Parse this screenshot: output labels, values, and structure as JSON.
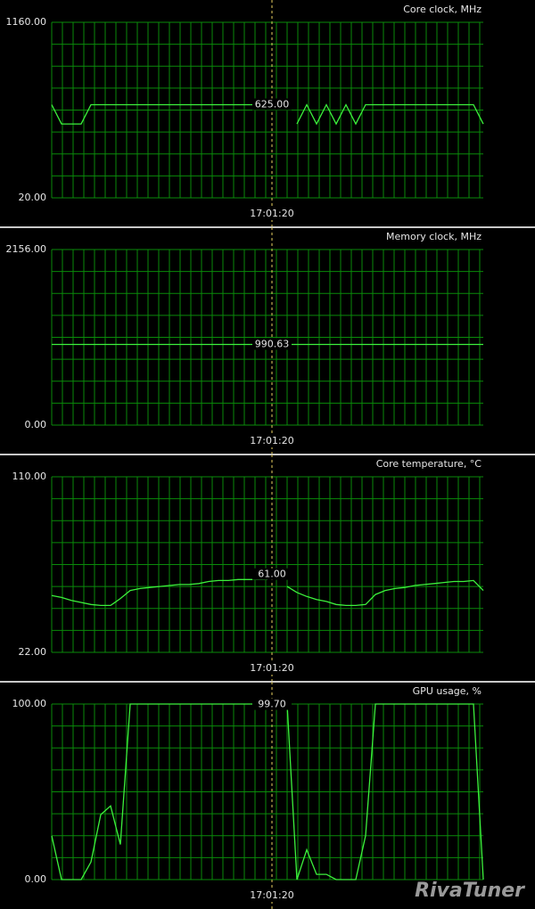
{
  "chart_data": [
    {
      "type": "line",
      "title": "Core clock, MHz",
      "categories": [
        null,
        null,
        null,
        null,
        null,
        null,
        null,
        null,
        null,
        null,
        null,
        null,
        null,
        null,
        null,
        null,
        null,
        null,
        null,
        null,
        null,
        null,
        null,
        null,
        null,
        null,
        null,
        null,
        null,
        null,
        null,
        null,
        null,
        null,
        null,
        null,
        null,
        null,
        null,
        null,
        null,
        null,
        null,
        null,
        null
      ],
      "values": [
        625,
        500,
        500,
        500,
        625,
        625,
        625,
        625,
        625,
        625,
        625,
        625,
        625,
        625,
        625,
        625,
        625,
        625,
        625,
        625,
        625,
        625,
        625,
        null,
        null,
        500,
        625,
        500,
        625,
        500,
        625,
        500,
        625,
        625,
        625,
        625,
        625,
        625,
        625,
        625,
        625,
        625,
        625,
        625,
        500
      ],
      "color": "#3cf03c",
      "ylim": [
        20,
        1160
      ],
      "yticks": [
        {
          "value": 20,
          "label": "20.00"
        },
        {
          "value": 1160,
          "label": "1160.00"
        }
      ],
      "grid": true,
      "cursor": {
        "time": "17:01:20",
        "value": 625,
        "label": "625.00"
      }
    },
    {
      "type": "line",
      "title": "Memory clock, MHz",
      "categories": [
        null,
        null,
        null,
        null,
        null,
        null,
        null,
        null,
        null,
        null,
        null,
        null,
        null,
        null,
        null,
        null,
        null,
        null,
        null,
        null,
        null,
        null,
        null,
        null,
        null,
        null,
        null,
        null,
        null,
        null,
        null,
        null,
        null,
        null,
        null,
        null,
        null,
        null,
        null,
        null,
        null,
        null,
        null,
        null,
        null
      ],
      "values": [
        990.63,
        990.63,
        990.63,
        990.63,
        990.63,
        990.63,
        990.63,
        990.63,
        990.63,
        990.63,
        990.63,
        990.63,
        990.63,
        990.63,
        990.63,
        990.63,
        990.63,
        990.63,
        990.63,
        990.63,
        990.63,
        990.63,
        990.63,
        990.63,
        990.63,
        990.63,
        990.63,
        990.63,
        990.63,
        990.63,
        990.63,
        990.63,
        990.63,
        990.63,
        990.63,
        990.63,
        990.63,
        990.63,
        990.63,
        990.63,
        990.63,
        990.63,
        990.63,
        990.63,
        990.63
      ],
      "color": "#3cf03c",
      "ylim": [
        0,
        2156
      ],
      "yticks": [
        {
          "value": 0,
          "label": "0.00"
        },
        {
          "value": 2156,
          "label": "2156.00"
        }
      ],
      "grid": true,
      "cursor": {
        "time": "17:01:20",
        "value": 990.63,
        "label": "990.63"
      }
    },
    {
      "type": "line",
      "title": "Core temperature, °C",
      "categories": [
        null,
        null,
        null,
        null,
        null,
        null,
        null,
        null,
        null,
        null,
        null,
        null,
        null,
        null,
        null,
        null,
        null,
        null,
        null,
        null,
        null,
        null,
        null,
        null,
        null,
        null,
        null,
        null,
        null,
        null,
        null,
        null,
        null,
        null,
        null,
        null,
        null,
        null,
        null,
        null,
        null,
        null,
        null,
        null,
        null
      ],
      "values": [
        50.5,
        49.5,
        48,
        47,
        46,
        45.5,
        45.5,
        49,
        53,
        54,
        54.5,
        55,
        55.5,
        56,
        56,
        56.5,
        57.5,
        58,
        58,
        58.5,
        58.5,
        58.5,
        58.5,
        null,
        55,
        52,
        50,
        48.5,
        47.5,
        46,
        45.5,
        45.5,
        46,
        51,
        53,
        54,
        54.5,
        55.5,
        56,
        56.5,
        57,
        57.5,
        57.5,
        58,
        53
      ],
      "color": "#3cf03c",
      "ylim": [
        22,
        110
      ],
      "yticks": [
        {
          "value": 22,
          "label": "22.00"
        },
        {
          "value": 110,
          "label": "110.00"
        }
      ],
      "grid": true,
      "cursor": {
        "time": "17:01:20",
        "value": 61,
        "label": "61.00"
      }
    },
    {
      "type": "line",
      "title": "GPU usage, %",
      "categories": [
        null,
        null,
        null,
        null,
        null,
        null,
        null,
        null,
        null,
        null,
        null,
        null,
        null,
        null,
        null,
        null,
        null,
        null,
        null,
        null,
        null,
        null,
        null,
        null,
        null,
        null,
        null,
        null,
        null,
        null,
        null,
        null,
        null,
        null,
        null,
        null,
        null,
        null,
        null,
        null,
        null,
        null,
        null,
        null,
        null
      ],
      "values": [
        25,
        0,
        0,
        0,
        10,
        37,
        42,
        20,
        100,
        100,
        100,
        100,
        100,
        100,
        100,
        100,
        100,
        100,
        100,
        100,
        100,
        100,
        100,
        null,
        100,
        0,
        17,
        3,
        3,
        0,
        0,
        0,
        25,
        100,
        100,
        100,
        100,
        100,
        100,
        100,
        100,
        100,
        100,
        100,
        0
      ],
      "color": "#3cf03c",
      "ylim": [
        0,
        100
      ],
      "yticks": [
        {
          "value": 0,
          "label": "0.00"
        },
        {
          "value": 100,
          "label": "100.00"
        }
      ],
      "grid": true,
      "cursor": {
        "time": "17:01:20",
        "value": 99.7,
        "label": "99.70"
      }
    }
  ],
  "watermark": "RivaTuner"
}
